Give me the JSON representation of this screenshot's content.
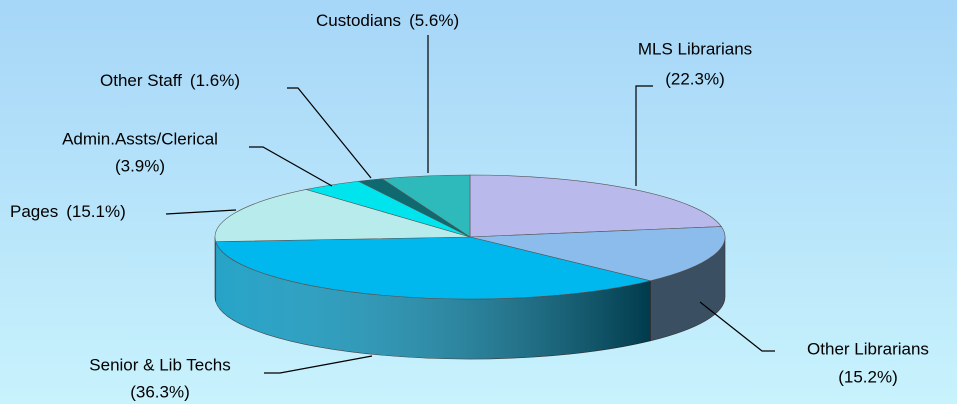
{
  "chart_data": {
    "type": "pie3d",
    "categories": [
      "MLS Librarians",
      "Other Librarians",
      "Senior & Lib Techs",
      "Pages",
      "Admin.Assts/Clerical",
      "Other Staff",
      "Custodians"
    ],
    "values": [
      22.3,
      15.2,
      36.3,
      15.1,
      3.9,
      1.6,
      5.6
    ],
    "value_labels": [
      "(22.3%)",
      "(15.2%)",
      "(36.3%)",
      "(15.1%)",
      "(3.9%)",
      "(1.6%)",
      "(5.6%)"
    ],
    "colors": [
      "#b9b9ec",
      "#8cbcec",
      "#00b8ee",
      "#b8ecec",
      "#00e4ee",
      "#0e6a70",
      "#2ebaba"
    ]
  }
}
